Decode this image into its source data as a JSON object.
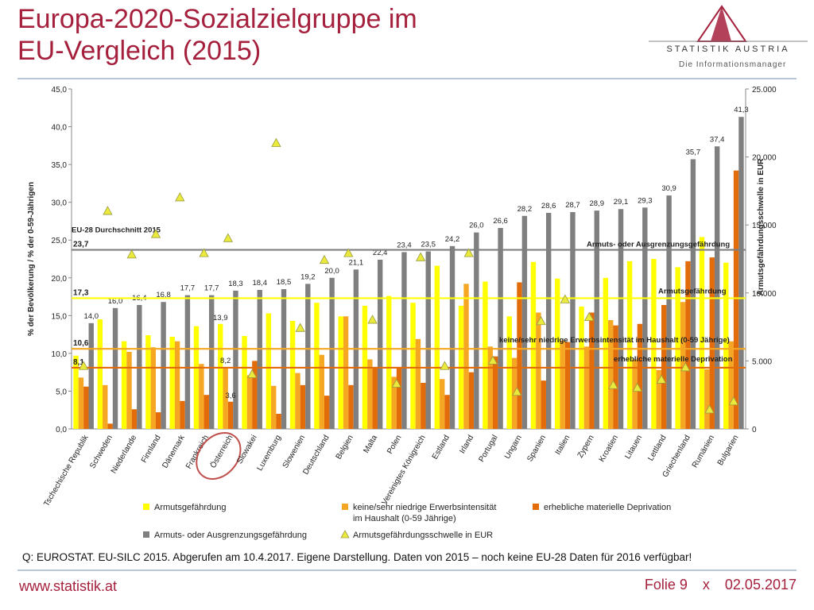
{
  "title": {
    "line1": "Europa-2020-Sozialzielgruppe im",
    "line2": "EU-Vergleich (2015)"
  },
  "logo": {
    "name": "STATISTIK AUSTRIA",
    "tagline": "Die Informationsmanager",
    "icon": "triangle-logo-icon"
  },
  "source": "Q: EUROSTAT. EU-SILC 2015. Abgerufen am 10.4.2017. Eigene Darstellung. Daten von 2015 – noch keine EU-28 Daten für 2016 verfügbar!",
  "footer": {
    "url": "www.statistik.at",
    "slide": "Folie 9",
    "sep": "x",
    "date": "02.05.2017"
  },
  "colors": {
    "accent": "#a5203c",
    "armut": "#ffff00",
    "erwerb": "#f5a623",
    "depr": "#e36c0a",
    "ausgr": "#7f7f7f",
    "schwelle": "#eaea3c"
  },
  "chart_data": {
    "type": "bar",
    "ylabel": "% der Bevölkerung / % der 0-59-Jährigen",
    "y2label": "Armutsgefährdungsschwelle in EUR",
    "ylim": [
      0,
      45
    ],
    "y2lim": [
      0,
      25000
    ],
    "yticks": [
      "0,0",
      "5,0",
      "10,0",
      "15,0",
      "20,0",
      "25,0",
      "30,0",
      "35,0",
      "40,0",
      "45,0"
    ],
    "y2ticks": [
      "0",
      "5.000",
      "10.000",
      "15.000",
      "20.000",
      "25.000"
    ],
    "grid": false,
    "legend_position": "bottom",
    "categories": [
      "Tschechische Republik",
      "Schweden",
      "Niederlande",
      "Finnland",
      "Dänemark",
      "Frankreich",
      "Österreich",
      "Slowakei",
      "Luxemburg",
      "Slowenien",
      "Deutschland",
      "Belgien",
      "Malta",
      "Polen",
      "Vereinigtes Königreich",
      "Estland",
      "Irland",
      "Portugal",
      "Ungarn",
      "Spanien",
      "Italien",
      "Zypern",
      "Kroatien",
      "Litauen",
      "Lettland",
      "Griechenland",
      "Rumänien",
      "Bulgarien"
    ],
    "highlight_category": "Österreich",
    "series": [
      {
        "name": "Armutsgefährdung",
        "type": "bar",
        "values": [
          9.7,
          14.5,
          11.6,
          12.4,
          12.2,
          13.6,
          13.9,
          12.3,
          15.3,
          14.3,
          16.7,
          14.9,
          16.3,
          17.6,
          16.7,
          21.6,
          16.3,
          19.5,
          14.9,
          22.1,
          19.9,
          16.2,
          20.0,
          22.2,
          22.5,
          21.4,
          25.4,
          22.0
        ]
      },
      {
        "name": "keine/sehr niedrige Erwerbsintensität im Haushalt (0-59 Jährige)",
        "type": "bar",
        "values": [
          6.8,
          5.8,
          10.2,
          10.8,
          11.6,
          8.6,
          8.2,
          7.1,
          5.7,
          7.4,
          9.8,
          14.9,
          9.2,
          6.9,
          11.9,
          6.6,
          19.2,
          10.9,
          9.4,
          15.4,
          11.7,
          10.9,
          14.4,
          9.2,
          7.8,
          16.8,
          7.9,
          11.6
        ]
      },
      {
        "name": "erhebliche materielle Deprivation",
        "type": "bar",
        "values": [
          5.6,
          0.7,
          2.6,
          2.2,
          3.7,
          4.5,
          3.6,
          9.0,
          2.0,
          5.8,
          4.4,
          5.8,
          8.1,
          8.1,
          6.1,
          4.5,
          7.5,
          9.6,
          19.4,
          6.4,
          11.5,
          15.4,
          13.7,
          13.9,
          16.4,
          22.2,
          22.7,
          34.2
        ]
      },
      {
        "name": "Armuts- oder Ausgrenzungsgefährdung",
        "type": "bar",
        "values": [
          14.0,
          16.0,
          16.4,
          16.8,
          17.7,
          17.7,
          18.3,
          18.4,
          18.5,
          19.2,
          20.0,
          21.1,
          22.4,
          23.4,
          23.5,
          24.2,
          26.0,
          26.6,
          28.2,
          28.6,
          28.7,
          28.9,
          29.1,
          29.3,
          30.9,
          35.7,
          37.4,
          41.3
        ]
      },
      {
        "name": "Armutsgefährdungsschwelle in EUR",
        "type": "scatter",
        "axis": "y2",
        "values": [
          4600,
          16000,
          12800,
          14300,
          17000,
          12900,
          14000,
          4000,
          21000,
          7400,
          12400,
          12900,
          8000,
          3300,
          12600,
          4600,
          12900,
          5000,
          2700,
          7900,
          9500,
          8200,
          3200,
          3000,
          3600,
          4500,
          1400,
          2000
        ]
      }
    ],
    "data_labels": {
      "ausgr_labels": [
        "14,0",
        "16,0",
        "16,4",
        "16,8",
        "17,7",
        "17,7",
        "18,3",
        "18,4",
        "18,5",
        "19,2",
        "20,0",
        "21,1",
        "22,4",
        "23,4",
        "23,5",
        "24,2",
        "26,0",
        "26,6",
        "28,2",
        "28,6",
        "28,7",
        "28,9",
        "29,1",
        "29,3",
        "30,9",
        "35,7",
        "37,4",
        "41,3"
      ],
      "austria_armut": "13,9",
      "austria_erwerb": "8,2",
      "austria_depr": "3,6"
    },
    "reference_lines": [
      {
        "name": "Armuts- oder Ausgrenzungsgefährdung",
        "value": 23.7,
        "label": "23,7",
        "color": "#7f7f7f"
      },
      {
        "name": "Armutsgefährdung",
        "value": 17.3,
        "label": "17,3",
        "color": "#ffff00"
      },
      {
        "name": "keine/sehr niedrige Erwerbsintensität im Haushalt (0-59 Jährige)",
        "value": 10.6,
        "label": "10,6",
        "color": "#f5a623"
      },
      {
        "name": "erhebliche materielle Deprivation",
        "value": 8.1,
        "label": "8,1",
        "color": "#e36c0a"
      }
    ],
    "annotation": "EU-28 Durchschnitt 2015",
    "legend": [
      {
        "label": "Armutsgefährdung",
        "series": 0
      },
      {
        "label": "keine/sehr niedrige Erwerbsintensität",
        "label2": "im Haushalt (0-59 Jährige)",
        "series": 1
      },
      {
        "label": "erhebliche materielle Deprivation",
        "series": 2
      },
      {
        "label": "Armuts- oder Ausgrenzungsgefährdung",
        "series": 3
      },
      {
        "label": "Armutsgefährdungsschwelle in EUR",
        "series": 4
      }
    ]
  }
}
